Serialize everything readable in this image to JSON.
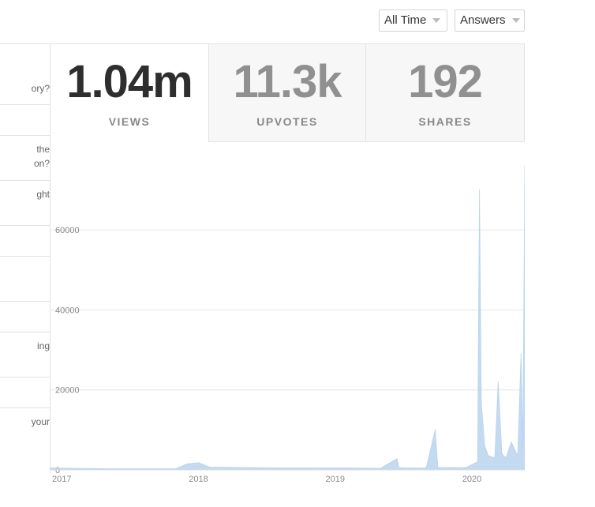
{
  "filters": {
    "time_range": "All Time",
    "content_type": "Answers"
  },
  "left_list": [
    {
      "text": "ory?"
    },
    {
      "text": ""
    },
    {
      "text": "the\non?"
    },
    {
      "text": "ght"
    },
    {
      "text": ""
    },
    {
      "text": ""
    },
    {
      "text": ""
    },
    {
      "text": "ing"
    },
    {
      "text": ""
    },
    {
      "text": "your"
    }
  ],
  "stats": {
    "views": {
      "value": "1.04m",
      "label": "VIEWS"
    },
    "upvotes": {
      "value": "11.3k",
      "label": "UPVOTES"
    },
    "shares": {
      "value": "192",
      "label": "SHARES"
    }
  },
  "chart_data": {
    "type": "area",
    "title": "",
    "xlabel": "",
    "ylabel": "",
    "x_ticks": [
      "2017",
      "2018",
      "2019",
      "2020"
    ],
    "y_ticks": [
      "0",
      "20000",
      "40000",
      "60000"
    ],
    "ylim": [
      0,
      78000
    ],
    "xlim": [
      "2017-01-01",
      "2020-06-20"
    ],
    "grid": true,
    "color": "#b9d3ee",
    "series": [
      {
        "x": [
          "2017-01-01",
          "2017-03-01",
          "2017-06-01",
          "2017-09-01",
          "2017-12-01",
          "2018-01-01",
          "2018-02-01",
          "2018-03-01",
          "2018-06-01",
          "2018-09-01",
          "2018-12-01",
          "2019-03-01",
          "2019-06-01",
          "2019-07-15",
          "2019-07-20",
          "2019-08-01",
          "2019-10-01",
          "2019-10-25",
          "2019-11-01",
          "2019-12-01",
          "2020-01-15",
          "2020-02-15",
          "2020-02-20",
          "2020-02-25",
          "2020-03-05",
          "2020-03-15",
          "2020-04-01",
          "2020-04-10",
          "2020-04-20",
          "2020-05-01",
          "2020-05-15",
          "2020-06-01",
          "2020-06-10",
          "2020-06-15",
          "2020-06-20"
        ],
        "y": [
          500,
          400,
          300,
          300,
          300,
          1500,
          1800,
          700,
          600,
          500,
          500,
          500,
          400,
          2800,
          600,
          500,
          500,
          10000,
          600,
          600,
          600,
          2000,
          70000,
          17000,
          6000,
          3500,
          3000,
          22000,
          4000,
          3000,
          7000,
          3500,
          29000,
          6000,
          76000
        ]
      }
    ]
  }
}
